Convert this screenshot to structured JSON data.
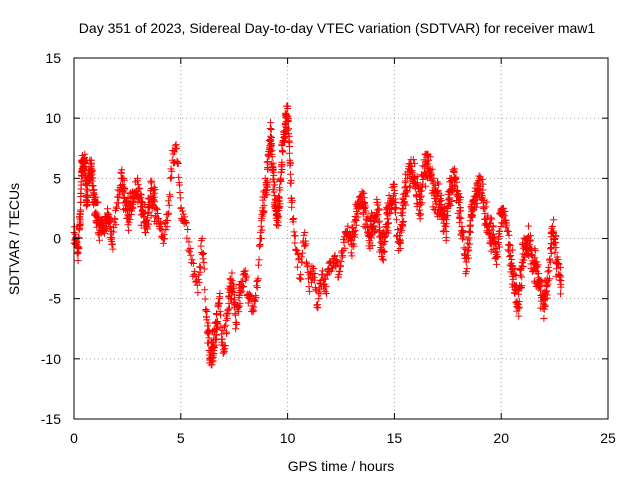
{
  "chart_data": {
    "type": "scatter",
    "title": "Day 351 of 2023, Sidereal Day-to-day VTEC variation (SDTVAR) for receiver maw1",
    "xlabel": "GPS time / hours",
    "ylabel": "SDTVAR / TECUs",
    "xlim": [
      0,
      25
    ],
    "ylim": [
      -15,
      15
    ],
    "xticks": [
      0,
      5,
      10,
      15,
      20,
      25
    ],
    "yticks": [
      -15,
      -10,
      -5,
      0,
      5,
      10,
      15
    ],
    "xtick_labels": [
      "0",
      "5",
      "10",
      "15",
      "20",
      "25"
    ],
    "ytick_labels": [
      "-15",
      "-10",
      "-5",
      "0",
      "5",
      "10",
      "15"
    ],
    "grid": true,
    "marker": "+",
    "color": "#ff0000",
    "series": [
      {
        "name": "SDTVAR",
        "x": [
          0.0,
          0.1,
          0.2,
          0.25,
          0.3,
          0.35,
          0.4,
          0.45,
          0.5,
          0.55,
          0.6,
          0.7,
          0.8,
          0.9,
          1.0,
          1.1,
          1.2,
          1.3,
          1.4,
          1.5,
          1.6,
          1.7,
          1.8,
          2.0,
          2.2,
          2.4,
          2.6,
          2.8,
          3.0,
          3.2,
          3.4,
          3.6,
          3.8,
          4.0,
          4.2,
          4.4,
          4.6,
          4.8,
          5.0,
          5.2,
          5.5,
          5.8,
          6.0,
          6.2,
          6.4,
          6.6,
          6.8,
          7.0,
          7.2,
          7.4,
          7.6,
          7.8,
          8.0,
          8.2,
          8.4,
          8.6,
          8.8,
          9.0,
          9.1,
          9.2,
          9.3,
          9.4,
          9.5,
          9.6,
          9.7,
          9.8,
          9.9,
          10.0,
          10.1,
          10.2,
          10.4,
          10.6,
          10.8,
          11.0,
          11.2,
          11.4,
          11.6,
          11.8,
          12.0,
          12.2,
          12.4,
          12.6,
          12.8,
          13.0,
          13.2,
          13.4,
          13.6,
          13.8,
          14.0,
          14.2,
          14.4,
          14.6,
          14.8,
          15.0,
          15.2,
          15.4,
          15.6,
          15.8,
          16.0,
          16.2,
          16.4,
          16.6,
          16.8,
          17.0,
          17.2,
          17.4,
          17.6,
          17.8,
          18.0,
          18.2,
          18.4,
          18.6,
          18.8,
          19.0,
          19.2,
          19.4,
          19.6,
          19.8,
          20.0,
          20.2,
          20.4,
          20.6,
          20.8,
          21.0,
          21.2,
          21.4,
          21.6,
          21.8,
          22.0,
          22.2,
          22.4,
          22.6,
          22.8
        ],
        "y": [
          0.5,
          -0.5,
          -1.2,
          0.8,
          2.0,
          5.5,
          6.3,
          5.8,
          6.5,
          4.5,
          3.0,
          5.0,
          6.0,
          4.0,
          2.0,
          1.5,
          0.5,
          1.0,
          0.8,
          1.2,
          2.0,
          1.0,
          -0.5,
          2.5,
          5.5,
          3.0,
          2.0,
          3.5,
          4.5,
          2.0,
          1.0,
          3.5,
          2.5,
          1.0,
          0.0,
          2.0,
          6.5,
          7.5,
          2.5,
          1.5,
          -2.0,
          -4.5,
          0.0,
          -6.5,
          -10.0,
          -8.0,
          -5.0,
          -9.5,
          -6.0,
          -3.5,
          -7.0,
          -4.5,
          -3.0,
          -5.0,
          -6.0,
          -3.5,
          2.0,
          4.0,
          7.0,
          8.5,
          6.0,
          3.0,
          1.5,
          2.5,
          5.5,
          8.0,
          9.5,
          10.8,
          6.5,
          3.0,
          -1.0,
          -3.0,
          0.5,
          -4.0,
          -2.5,
          -5.5,
          -3.0,
          -4.0,
          -2.0,
          -1.5,
          -3.0,
          -1.0,
          0.5,
          -0.5,
          1.5,
          3.5,
          2.5,
          0.5,
          1.0,
          3.0,
          -1.5,
          1.0,
          2.5,
          4.0,
          -1.0,
          2.5,
          5.0,
          6.0,
          4.5,
          3.0,
          5.5,
          6.5,
          4.0,
          3.5,
          2.5,
          1.0,
          4.0,
          5.5,
          3.0,
          0.5,
          -2.5,
          2.0,
          3.5,
          5.0,
          2.5,
          1.0,
          0.0,
          -1.5,
          2.0,
          1.5,
          -1.5,
          -3.0,
          -5.5,
          -2.0,
          0.0,
          -1.0,
          -2.5,
          -4.0,
          -5.5,
          -3.5,
          1.0,
          -2.0,
          -3.5
        ],
        "dense_clusters": [
          {
            "x_range": [
              0.3,
              1.2
            ],
            "y_range": [
              3.0,
              6.5
            ]
          },
          {
            "x_range": [
              2.2,
              3.8
            ],
            "y_range": [
              0.5,
              5.0
            ]
          },
          {
            "x_range": [
              6.2,
              7.8
            ],
            "y_range": [
              -10.5,
              -1.5
            ]
          },
          {
            "x_range": [
              8.6,
              10.2
            ],
            "y_range": [
              0.0,
              11.0
            ]
          },
          {
            "x_range": [
              13.0,
              15.0
            ],
            "y_range": [
              -2.5,
              4.5
            ]
          },
          {
            "x_range": [
              15.0,
              17.5
            ],
            "y_range": [
              -5.0,
              7.0
            ]
          },
          {
            "x_range": [
              17.5,
              19.5
            ],
            "y_range": [
              -3.5,
              5.0
            ]
          },
          {
            "x_range": [
              19.5,
              22.8
            ],
            "y_range": [
              -7.0,
              2.5
            ]
          }
        ]
      }
    ]
  }
}
